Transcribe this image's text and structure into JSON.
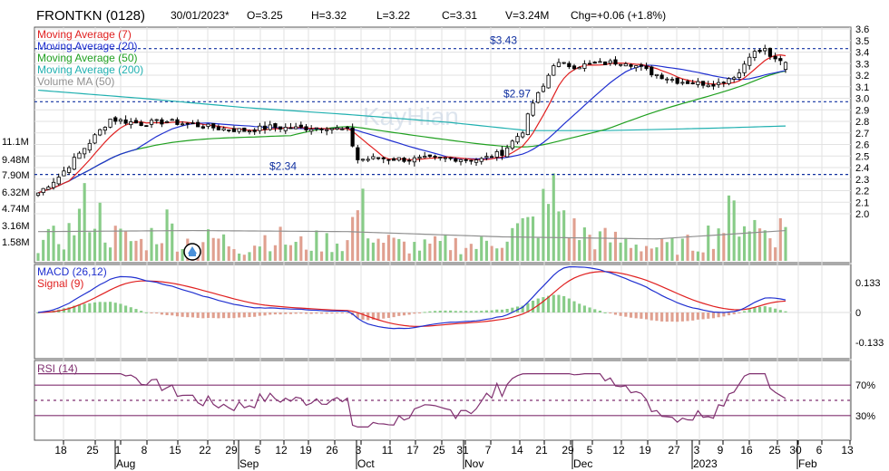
{
  "header": {
    "symbol": "FRONTKN (0128)",
    "date": "30/01/2023*",
    "open": "O=3.25",
    "high": "H=3.32",
    "low": "L=3.22",
    "close": "C=3.31",
    "volume": "V=3.24M",
    "change": "Chg=+0.06 (+1.8%)"
  },
  "legend": {
    "ma7": "Moving Average (7)",
    "ma20": "Moving Average (20)",
    "ma50": "Moving Average (50)",
    "ma200": "Moving Average (200)",
    "volma": "Volume MA (50)",
    "macd": "MACD (26,12)",
    "signal": "Signal (9)",
    "rsi": "RSI (14)"
  },
  "watermark": "KayHian",
  "colors": {
    "ma7": "#e02020",
    "ma20": "#2030d0",
    "ma50": "#20a020",
    "ma200": "#20b0b0",
    "volma": "#909090",
    "vol_up": "#88cc88",
    "vol_down": "#e0a090",
    "rsi": "#803070",
    "hline": "#1030a0"
  },
  "chart_data": {
    "type": "candlestick",
    "price_axis": {
      "ylim": [
        1.85,
        3.6
      ],
      "ticks": [
        "3.6",
        "3.5",
        "3.4",
        "3.3",
        "3.2",
        "3.1",
        "3.0",
        "2.9",
        "2.8",
        "2.7",
        "2.6",
        "2.5",
        "2.4",
        "2.3",
        "2.2",
        "2.1",
        "2.0"
      ]
    },
    "volume_axis": {
      "labels": [
        "11.1M",
        "9.48M",
        "7.90M",
        "6.32M",
        "4.74M",
        "3.16M",
        "1.58M"
      ]
    },
    "reference_lines": [
      {
        "value": 3.43,
        "label": "$3.43"
      },
      {
        "value": 2.97,
        "label": "$2.97"
      },
      {
        "value": 2.34,
        "label": "$2.34"
      }
    ],
    "x_ticks": [
      "18",
      "25",
      "1",
      "8",
      "15",
      "22",
      "29",
      "5",
      "12",
      "19",
      "26",
      "3",
      "11",
      "17",
      "25",
      "31",
      "7",
      "14",
      "21",
      "29",
      "5",
      "12",
      "19",
      "27",
      "3",
      "9",
      "16",
      "25",
      "30",
      "6",
      "13"
    ],
    "month_labels": [
      "Aug",
      "Sep",
      "Oct",
      "Nov",
      "Dec",
      "2023",
      "Feb"
    ],
    "close_anchors": [
      [
        0,
        2.18
      ],
      [
        4,
        2.32
      ],
      [
        10,
        2.62
      ],
      [
        14,
        2.82
      ],
      [
        20,
        2.78
      ],
      [
        25,
        2.8
      ],
      [
        30,
        2.77
      ],
      [
        35,
        2.74
      ],
      [
        40,
        2.72
      ],
      [
        45,
        2.75
      ],
      [
        50,
        2.74
      ],
      [
        56,
        2.75
      ],
      [
        60,
        2.72
      ],
      [
        62,
        2.47
      ],
      [
        66,
        2.48
      ],
      [
        72,
        2.47
      ],
      [
        80,
        2.48
      ],
      [
        86,
        2.47
      ],
      [
        90,
        2.53
      ],
      [
        94,
        2.72
      ],
      [
        96,
        2.96
      ],
      [
        98,
        3.1
      ],
      [
        100,
        3.3
      ],
      [
        104,
        3.28
      ],
      [
        109,
        3.3
      ],
      [
        114,
        3.32
      ],
      [
        119,
        3.22
      ],
      [
        124,
        3.15
      ],
      [
        128,
        3.13
      ],
      [
        132,
        3.13
      ],
      [
        136,
        3.22
      ],
      [
        138,
        3.38
      ],
      [
        141,
        3.42
      ],
      [
        143,
        3.32
      ],
      [
        145,
        3.31
      ]
    ],
    "volume_anchors": [
      [
        0,
        1.6
      ],
      [
        6,
        2.8
      ],
      [
        10,
        5.9
      ],
      [
        14,
        2.6
      ],
      [
        20,
        1.8
      ],
      [
        25,
        3.7
      ],
      [
        28,
        1.9
      ],
      [
        35,
        2.2
      ],
      [
        40,
        1.2
      ],
      [
        45,
        2.6
      ],
      [
        50,
        1.6
      ],
      [
        55,
        2.0
      ],
      [
        60,
        1.9
      ],
      [
        62,
        5.6
      ],
      [
        66,
        2.2
      ],
      [
        70,
        1.6
      ],
      [
        75,
        1.4
      ],
      [
        80,
        1.8
      ],
      [
        85,
        1.5
      ],
      [
        90,
        2.4
      ],
      [
        96,
        3.6
      ],
      [
        100,
        6.4
      ],
      [
        104,
        3.0
      ],
      [
        109,
        2.2
      ],
      [
        114,
        2.0
      ],
      [
        119,
        1.4
      ],
      [
        124,
        1.5
      ],
      [
        128,
        1.8
      ],
      [
        132,
        3.4
      ],
      [
        136,
        5.0
      ],
      [
        140,
        3.1
      ],
      [
        145,
        3.24
      ]
    ],
    "ma200_anchors": [
      [
        0,
        3.07
      ],
      [
        20,
        3.0
      ],
      [
        40,
        2.92
      ],
      [
        60,
        2.86
      ],
      [
        80,
        2.79
      ],
      [
        95,
        2.72
      ],
      [
        110,
        2.72
      ],
      [
        130,
        2.74
      ],
      [
        145,
        2.76
      ]
    ],
    "volma_anchors": [
      [
        0,
        2.8
      ],
      [
        30,
        2.9
      ],
      [
        60,
        2.8
      ],
      [
        90,
        2.3
      ],
      [
        120,
        2.1
      ],
      [
        145,
        2.9
      ]
    ],
    "macd": {
      "ticks": [
        "0.133",
        "0",
        "-0.133"
      ]
    },
    "rsi": {
      "levels": [
        "70%",
        "30%"
      ]
    }
  }
}
